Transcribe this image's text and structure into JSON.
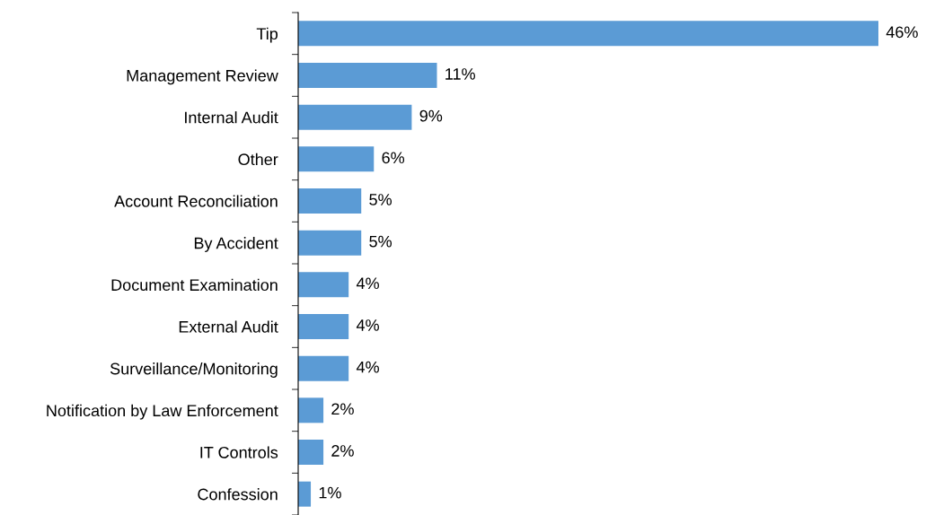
{
  "chart_data": {
    "type": "bar",
    "orientation": "horizontal",
    "categories": [
      "Tip",
      "Management Review",
      "Internal Audit",
      "Other",
      "Account Reconciliation",
      "By Accident",
      "Document Examination",
      "External Audit",
      "Surveillance/Monitoring",
      "Notification by Law Enforcement",
      "IT Controls",
      "Confession"
    ],
    "values": [
      46,
      11,
      9,
      6,
      5,
      5,
      4,
      4,
      4,
      2,
      2,
      1
    ],
    "value_labels": [
      "46%",
      "11%",
      "9%",
      "6%",
      "5%",
      "5%",
      "4%",
      "4%",
      "4%",
      "2%",
      "2%",
      "1%"
    ],
    "color": "#5b9bd5",
    "grid": false,
    "legend": false,
    "tick_labels": "y"
  }
}
